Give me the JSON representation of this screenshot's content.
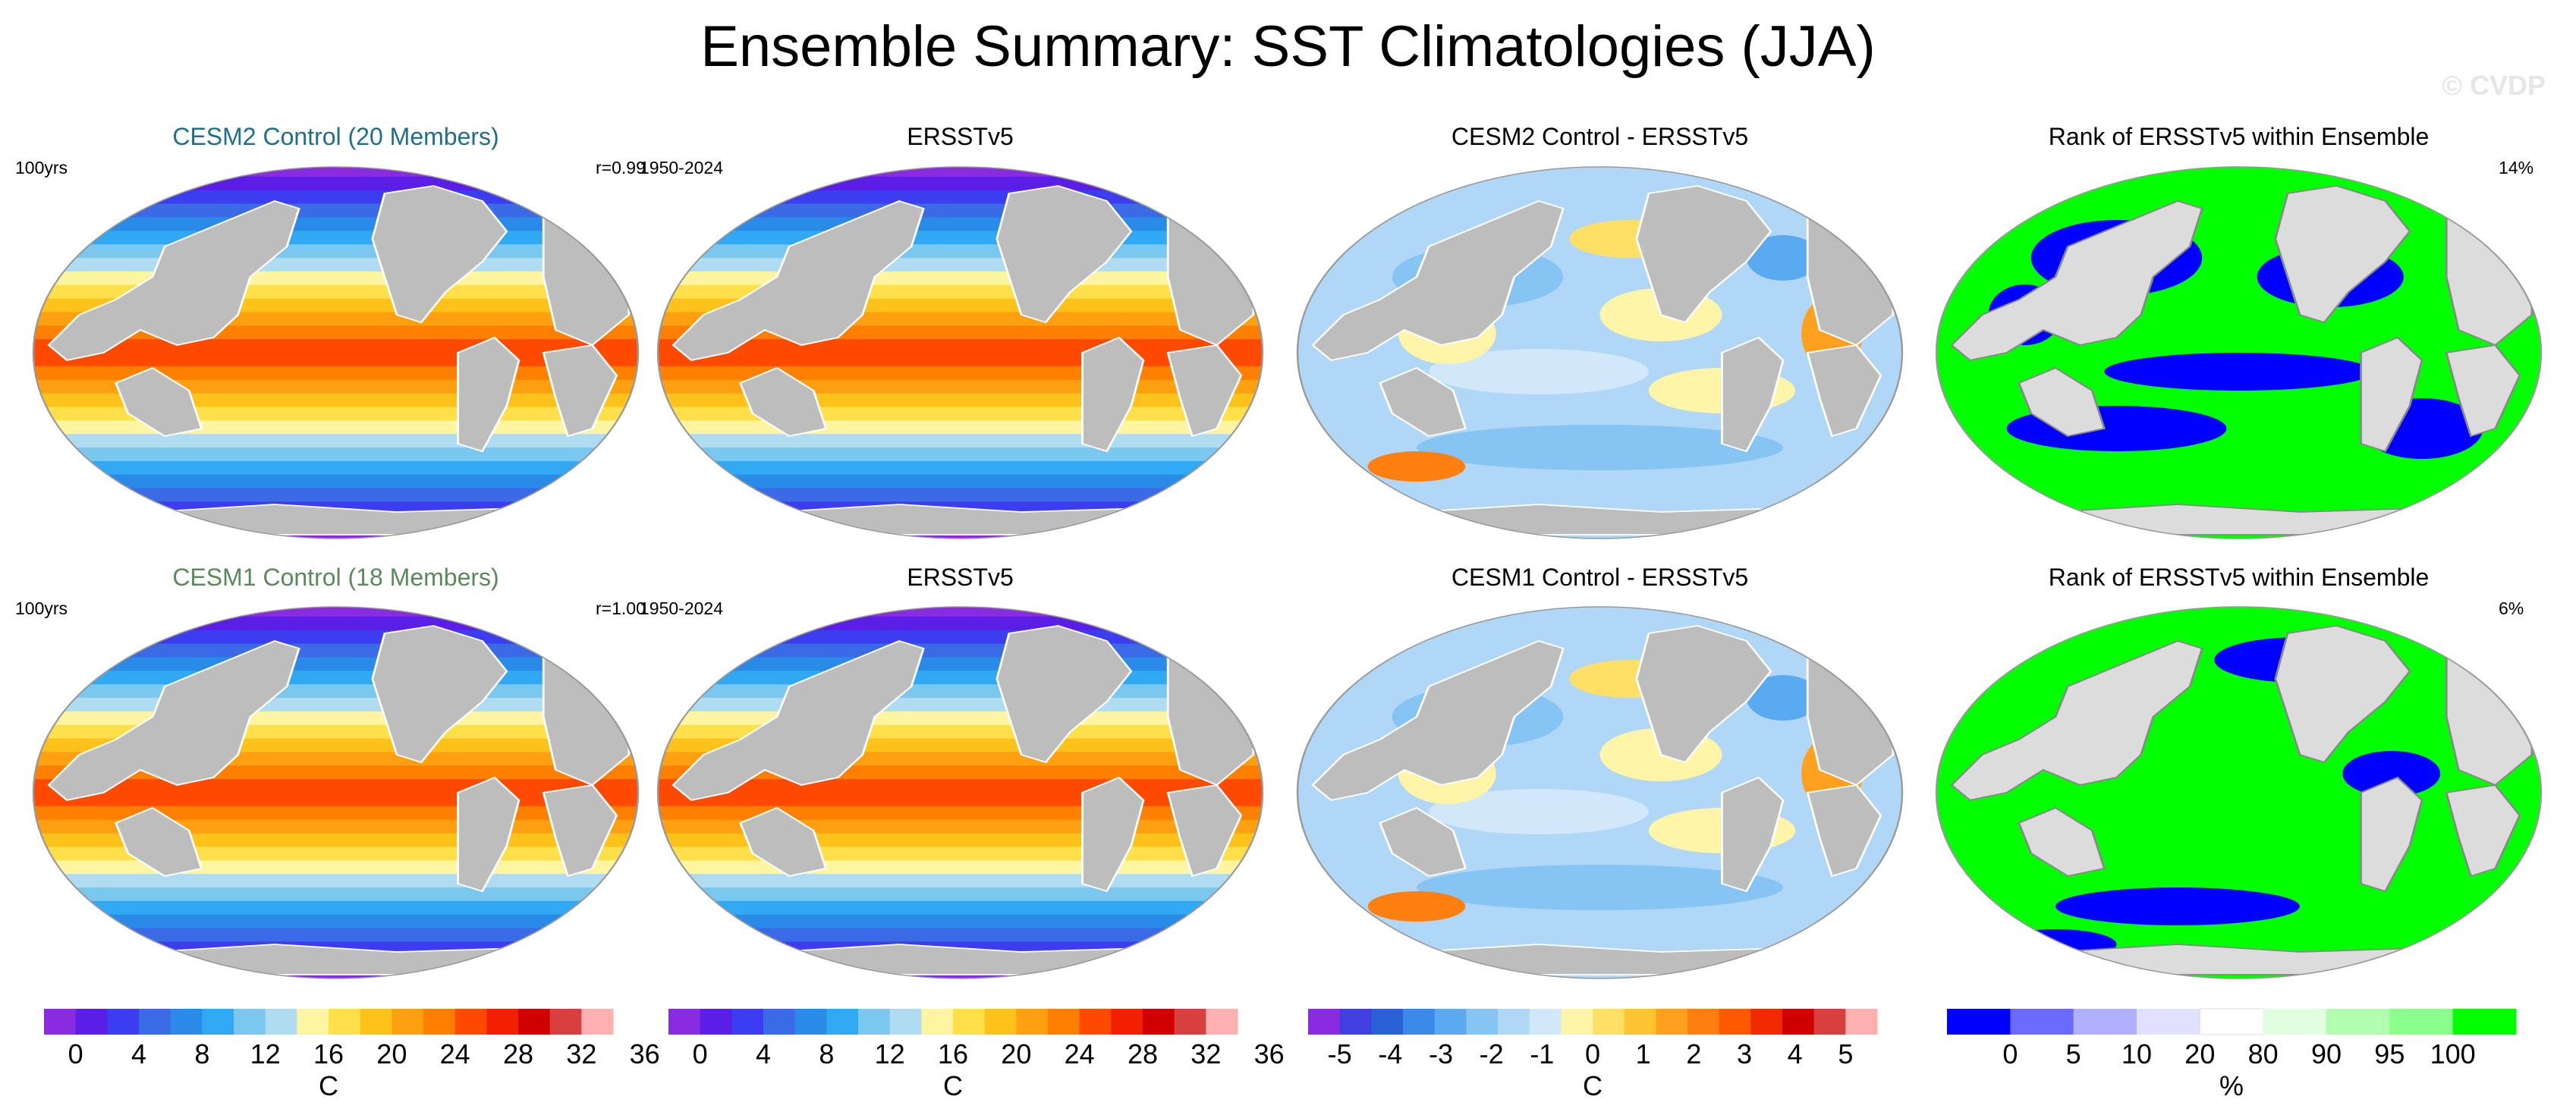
{
  "title": "Ensemble Summary: SST Climatologies (JJA)",
  "watermark": "© CVDP",
  "rows": [
    {
      "panels": [
        {
          "title": "CESM2 Control (20 Members)",
          "title_color": "#1d6f8c",
          "left_label": "100yrs",
          "right_label": "r=0.99",
          "kind": "sst"
        },
        {
          "title": "ERSSTv5",
          "title_color": "#000000",
          "left_label": "1950-2024",
          "right_label": "",
          "kind": "sst"
        },
        {
          "title": "CESM2 Control - ERSSTv5",
          "title_color": "#000000",
          "left_label": "",
          "right_label": "",
          "kind": "diff"
        },
        {
          "title": "Rank of ERSSTv5 within Ensemble",
          "title_color": "#000000",
          "left_label": "",
          "right_label": "14%",
          "kind": "rank"
        }
      ]
    },
    {
      "panels": [
        {
          "title": "CESM1 Control (18 Members)",
          "title_color": "#5a8a5a",
          "left_label": "100yrs",
          "right_label": "r=1.00",
          "kind": "sst"
        },
        {
          "title": "ERSSTv5",
          "title_color": "#000000",
          "left_label": "1950-2024",
          "right_label": "",
          "kind": "sst"
        },
        {
          "title": "CESM1 Control - ERSSTv5",
          "title_color": "#000000",
          "left_label": "",
          "right_label": "",
          "kind": "diff"
        },
        {
          "title": "Rank of ERSSTv5 within Ensemble",
          "title_color": "#000000",
          "left_label": "",
          "right_label": "6%",
          "kind": "rank"
        }
      ]
    }
  ],
  "colorbars": [
    {
      "name": "sst-1",
      "unit": "C",
      "colors": [
        "#8a2be2",
        "#5a1ee6",
        "#3c3cf0",
        "#3a6ae6",
        "#2a8ae8",
        "#30a8f2",
        "#7ac8f0",
        "#b0dcf2",
        "#fff5a0",
        "#ffe04a",
        "#ffc21a",
        "#ffa010",
        "#ff7f00",
        "#ff4a00",
        "#f02000",
        "#d00000",
        "#d84040",
        "#ffb0b0"
      ],
      "ticks": [
        "0",
        "4",
        "8",
        "12",
        "16",
        "20",
        "24",
        "28",
        "32",
        "36"
      ]
    },
    {
      "name": "sst-2",
      "unit": "C",
      "colors": [
        "#8a2be2",
        "#5a1ee6",
        "#3c3cf0",
        "#3a6ae6",
        "#2a8ae8",
        "#30a8f2",
        "#7ac8f0",
        "#b0dcf2",
        "#fff5a0",
        "#ffe04a",
        "#ffc21a",
        "#ffa010",
        "#ff7f00",
        "#ff4a00",
        "#f02000",
        "#d00000",
        "#d84040",
        "#ffb0b0"
      ],
      "ticks": [
        "0",
        "4",
        "8",
        "12",
        "16",
        "20",
        "24",
        "28",
        "32",
        "36"
      ]
    },
    {
      "name": "diff",
      "unit": "C",
      "colors": [
        "#8a2be2",
        "#4040e0",
        "#2a62d6",
        "#3a8aea",
        "#5aaaf2",
        "#86c4f4",
        "#b0d8f6",
        "#d0e8f8",
        "#fff5a8",
        "#ffe066",
        "#ffc432",
        "#ffa01e",
        "#ff7f10",
        "#ff5a00",
        "#f02a00",
        "#d00000",
        "#d84040",
        "#ffb0b0"
      ],
      "ticks": [
        "-5",
        "-4",
        "-3",
        "-2",
        "-1",
        "0",
        "1",
        "2",
        "3",
        "4",
        "5"
      ]
    },
    {
      "name": "rank",
      "unit": "%",
      "colors": [
        "#0000ff",
        "#6a6aff",
        "#b0b0ff",
        "#e0e0ff",
        "#ffffff",
        "#e0ffe0",
        "#b0ffb0",
        "#8aff8a",
        "#00ff00"
      ],
      "ticks": [
        "0",
        "5",
        "10",
        "20",
        "80",
        "90",
        "95",
        "100"
      ]
    }
  ],
  "legend": {
    "sst_scale": "0 to 36 C",
    "diff_scale": "-5 to 5 C",
    "rank_scale": "0 to 100 %"
  }
}
